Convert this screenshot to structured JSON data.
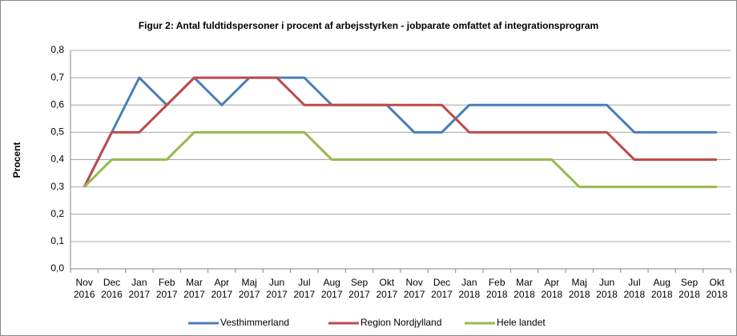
{
  "chart_data": {
    "type": "line",
    "title": "Figur 2: Antal fuldtidspersoner i procent af arbejsstyrken - jobparate omfattet af integrationsprogram",
    "ylabel": "Procent",
    "categories": [
      "Nov 2016",
      "Dec 2016",
      "Jan 2017",
      "Feb 2017",
      "Mar 2017",
      "Apr 2017",
      "Maj 2017",
      "Jun 2017",
      "Jul 2017",
      "Aug 2017",
      "Sep 2017",
      "Okt 2017",
      "Nov 2017",
      "Dec 2017",
      "Jan 2018",
      "Feb 2018",
      "Mar 2018",
      "Apr 2018",
      "Maj 2018",
      "Jun 2018",
      "Jul 2018",
      "Aug 2018",
      "Sep 2018",
      "Okt 2018"
    ],
    "series": [
      {
        "name": "Vesthimmerland",
        "color": "#4a7ebb",
        "values": [
          0.3,
          0.5,
          0.7,
          0.6,
          0.7,
          0.6,
          0.7,
          0.7,
          0.7,
          0.6,
          0.6,
          0.6,
          0.5,
          0.5,
          0.6,
          0.6,
          0.6,
          0.6,
          0.6,
          0.6,
          0.5,
          0.5,
          0.5,
          0.5
        ]
      },
      {
        "name": "Region Nordjylland",
        "color": "#be4b48",
        "values": [
          0.3,
          0.5,
          0.5,
          0.6,
          0.7,
          0.7,
          0.7,
          0.7,
          0.6,
          0.6,
          0.6,
          0.6,
          0.6,
          0.6,
          0.5,
          0.5,
          0.5,
          0.5,
          0.5,
          0.5,
          0.4,
          0.4,
          0.4,
          0.4
        ]
      },
      {
        "name": "Hele landet",
        "color": "#98b954",
        "values": [
          0.3,
          0.4,
          0.4,
          0.4,
          0.5,
          0.5,
          0.5,
          0.5,
          0.5,
          0.4,
          0.4,
          0.4,
          0.4,
          0.4,
          0.4,
          0.4,
          0.4,
          0.4,
          0.3,
          0.3,
          0.3,
          0.3,
          0.3,
          0.3
        ]
      }
    ],
    "ylim": [
      0,
      0.8
    ],
    "yticks": [
      {
        "value": 0,
        "label": "0,0"
      },
      {
        "value": 0.1,
        "label": "0,1"
      },
      {
        "value": 0.2,
        "label": "0,2"
      },
      {
        "value": 0.3,
        "label": "0,3"
      },
      {
        "value": 0.4,
        "label": "0,4"
      },
      {
        "value": 0.5,
        "label": "0,5"
      },
      {
        "value": 0.6,
        "label": "0,6"
      },
      {
        "value": 0.7,
        "label": "0,7"
      },
      {
        "value": 0.8,
        "label": "0,8"
      }
    ],
    "grid": true,
    "legend": "bottom"
  }
}
